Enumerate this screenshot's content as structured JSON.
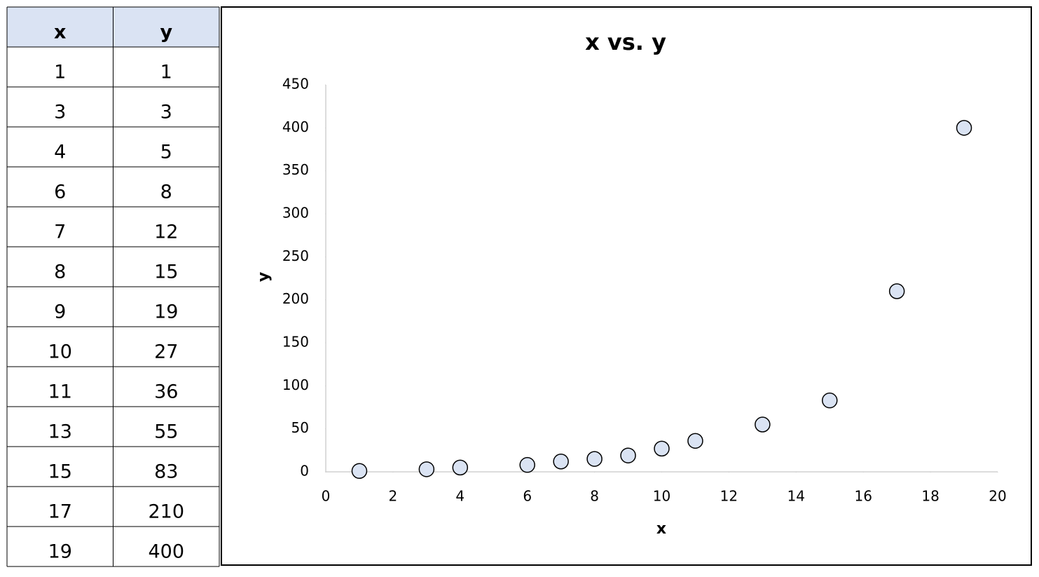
{
  "table": {
    "header": [
      "x",
      "y"
    ],
    "rows": [
      [
        1,
        1
      ],
      [
        3,
        3
      ],
      [
        4,
        5
      ],
      [
        6,
        8
      ],
      [
        7,
        12
      ],
      [
        8,
        15
      ],
      [
        9,
        19
      ],
      [
        10,
        27
      ],
      [
        11,
        36
      ],
      [
        13,
        55
      ],
      [
        15,
        83
      ],
      [
        17,
        210
      ],
      [
        19,
        400
      ]
    ]
  },
  "chart_data": {
    "type": "scatter",
    "title": "x vs. y",
    "x_label": "x",
    "y_label": "y",
    "x": [
      1,
      3,
      4,
      6,
      7,
      8,
      9,
      10,
      11,
      13,
      15,
      17,
      19
    ],
    "values": [
      1,
      3,
      5,
      8,
      12,
      15,
      19,
      27,
      36,
      55,
      83,
      210,
      400
    ],
    "color": "#dae3f3",
    "xlim": [
      0,
      20
    ],
    "xticks": [
      0,
      2,
      4,
      6,
      8,
      10,
      12,
      14,
      16,
      18,
      20
    ],
    "ylim": [
      0,
      450
    ],
    "yticks": [
      0,
      50,
      100,
      150,
      200,
      250,
      300,
      350,
      400,
      450
    ],
    "grid": false
  }
}
